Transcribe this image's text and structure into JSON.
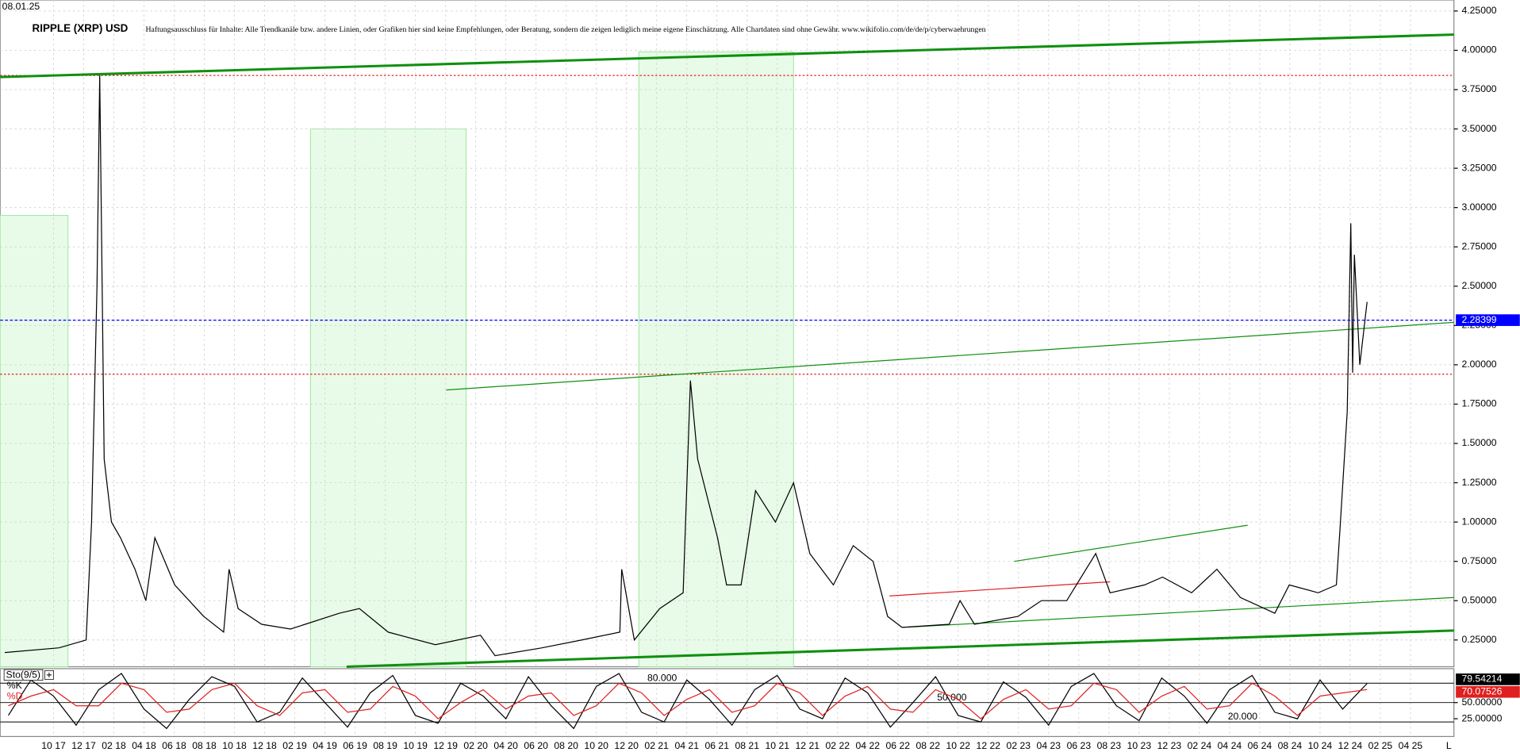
{
  "date": "08.01.25",
  "title": "RIPPLE (XRP) USD",
  "disclaimer": "Haftungsausschluss für Inhalte: Alle Trendkanäle bzw. andere Linien, oder Grafiken hier sind keine Empfehlungen, oder Beratung, sondern die zeigen lediglich meine eigene Einschätzung. Alle Chartdaten sind ohne Gewähr. www.wikifolio.com/de/de/p/cyberwaehrungen",
  "corner_label": "L",
  "chart_data": [
    {
      "type": "line",
      "xlim": [
        2017.455,
        2025.49
      ],
      "ylim": [
        0.08,
        4.32
      ],
      "grid": true,
      "xticks": [
        {
          "value": 2017.75,
          "label": "10 17"
        },
        {
          "value": 2017.9167,
          "label": "12 17"
        },
        {
          "value": 2018.0833,
          "label": "02 18"
        },
        {
          "value": 2018.25,
          "label": "04 18"
        },
        {
          "value": 2018.4167,
          "label": "06 18"
        },
        {
          "value": 2018.5833,
          "label": "08 18"
        },
        {
          "value": 2018.75,
          "label": "10 18"
        },
        {
          "value": 2018.9167,
          "label": "12 18"
        },
        {
          "value": 2019.0833,
          "label": "02 19"
        },
        {
          "value": 2019.25,
          "label": "04 19"
        },
        {
          "value": 2019.4167,
          "label": "06 19"
        },
        {
          "value": 2019.5833,
          "label": "08 19"
        },
        {
          "value": 2019.75,
          "label": "10 19"
        },
        {
          "value": 2019.9167,
          "label": "12 19"
        },
        {
          "value": 2020.0833,
          "label": "02 20"
        },
        {
          "value": 2020.25,
          "label": "04 20"
        },
        {
          "value": 2020.4167,
          "label": "06 20"
        },
        {
          "value": 2020.5833,
          "label": "08 20"
        },
        {
          "value": 2020.75,
          "label": "10 20"
        },
        {
          "value": 2020.9167,
          "label": "12 20"
        },
        {
          "value": 2021.0833,
          "label": "02 21"
        },
        {
          "value": 2021.25,
          "label": "04 21"
        },
        {
          "value": 2021.4167,
          "label": "06 21"
        },
        {
          "value": 2021.5833,
          "label": "08 21"
        },
        {
          "value": 2021.75,
          "label": "10 21"
        },
        {
          "value": 2021.9167,
          "label": "12 21"
        },
        {
          "value": 2022.0833,
          "label": "02 22"
        },
        {
          "value": 2022.25,
          "label": "04 22"
        },
        {
          "value": 2022.4167,
          "label": "06 22"
        },
        {
          "value": 2022.5833,
          "label": "08 22"
        },
        {
          "value": 2022.75,
          "label": "10 22"
        },
        {
          "value": 2022.9167,
          "label": "12 22"
        },
        {
          "value": 2023.0833,
          "label": "02 23"
        },
        {
          "value": 2023.25,
          "label": "04 23"
        },
        {
          "value": 2023.4167,
          "label": "06 23"
        },
        {
          "value": 2023.5833,
          "label": "08 23"
        },
        {
          "value": 2023.75,
          "label": "10 23"
        },
        {
          "value": 2023.9167,
          "label": "12 23"
        },
        {
          "value": 2024.0833,
          "label": "02 24"
        },
        {
          "value": 2024.25,
          "label": "04 24"
        },
        {
          "value": 2024.4167,
          "label": "06 24"
        },
        {
          "value": 2024.5833,
          "label": "08 24"
        },
        {
          "value": 2024.75,
          "label": "10 24"
        },
        {
          "value": 2024.9167,
          "label": "12 24"
        },
        {
          "value": 2025.0833,
          "label": "02 25"
        },
        {
          "value": 2025.25,
          "label": "04 25"
        }
      ],
      "yticks": [
        {
          "value": 0.25,
          "label": "0.25000"
        },
        {
          "value": 0.5,
          "label": "0.50000"
        },
        {
          "value": 0.75,
          "label": "0.75000"
        },
        {
          "value": 1,
          "label": "1.00000"
        },
        {
          "value": 1.25,
          "label": "1.25000"
        },
        {
          "value": 1.5,
          "label": "1.50000"
        },
        {
          "value": 1.75,
          "label": "1.75000"
        },
        {
          "value": 2,
          "label": "2.00000"
        },
        {
          "value": 2.25,
          "label": "2.25000"
        },
        {
          "value": 2.5,
          "label": "2.50000"
        },
        {
          "value": 2.75,
          "label": "2.75000"
        },
        {
          "value": 3,
          "label": "3.00000"
        },
        {
          "value": 3.25,
          "label": "3.25000"
        },
        {
          "value": 3.5,
          "label": "3.50000"
        },
        {
          "value": 3.75,
          "label": "3.75000"
        },
        {
          "value": 4,
          "label": "4.00000"
        },
        {
          "value": 4.25,
          "label": "4.25000"
        }
      ],
      "series": [
        {
          "color": "#000000",
          "x": [
            2017.48,
            2017.78,
            2017.93,
            2017.96,
            2017.99,
            2018.005,
            2018.03,
            2018.07,
            2018.12,
            2018.2,
            2018.26,
            2018.31,
            2018.42,
            2018.58,
            2018.69,
            2018.72,
            2018.77,
            2018.9,
            2019.06,
            2019.33,
            2019.44,
            2019.6,
            2019.86,
            2020.11,
            2020.19,
            2020.45,
            2020.67,
            2020.88,
            2020.89,
            2020.96,
            2021.1,
            2021.23,
            2021.27,
            2021.31,
            2021.42,
            2021.47,
            2021.55,
            2021.63,
            2021.74,
            2021.84,
            2021.93,
            2022.06,
            2022.17,
            2022.28,
            2022.36,
            2022.44,
            2022.7,
            2022.76,
            2022.84,
            2023.08,
            2023.21,
            2023.35,
            2023.51,
            2023.59,
            2023.78,
            2023.88,
            2024.04,
            2024.18,
            2024.31,
            2024.5,
            2024.58,
            2024.74,
            2024.84,
            2024.86,
            2024.9,
            2024.92,
            2024.93,
            2024.94,
            2024.97,
            2025.01
          ],
          "values": [
            0.17,
            0.2,
            0.25,
            1.0,
            2.5,
            3.84,
            1.4,
            1.0,
            0.9,
            0.7,
            0.5,
            0.9,
            0.6,
            0.4,
            0.3,
            0.7,
            0.45,
            0.35,
            0.32,
            0.42,
            0.45,
            0.3,
            0.22,
            0.28,
            0.15,
            0.2,
            0.25,
            0.3,
            0.7,
            0.25,
            0.45,
            0.55,
            1.9,
            1.4,
            0.9,
            0.6,
            0.6,
            1.2,
            1.0,
            1.25,
            0.8,
            0.6,
            0.85,
            0.75,
            0.4,
            0.33,
            0.35,
            0.5,
            0.35,
            0.4,
            0.5,
            0.5,
            0.8,
            0.55,
            0.6,
            0.65,
            0.55,
            0.7,
            0.52,
            0.42,
            0.6,
            0.55,
            0.6,
            0.95,
            1.7,
            2.9,
            1.95,
            2.7,
            2.0,
            2.4
          ]
        }
      ],
      "hlines": [
        {
          "value": 3.84,
          "color": "#e02020"
        },
        {
          "value": 1.94,
          "color": "#e02020"
        }
      ],
      "current": {
        "value": 2.28399,
        "color": "#0000ff"
      },
      "zones": [
        {
          "x": [
            2017.455,
            2017.83
          ],
          "top": 2.95
        },
        {
          "x": [
            2019.17,
            2020.03
          ],
          "top": 3.5
        },
        {
          "x": [
            2020.985,
            2021.84
          ],
          "top": 3.99
        }
      ],
      "trendlines": [
        {
          "x": [
            2017.455,
            2025.49
          ],
          "y": [
            3.83,
            4.1
          ],
          "color": "#109010",
          "width": 2.5
        },
        {
          "x": [
            2019.92,
            2025.49
          ],
          "y": [
            1.84,
            2.27
          ],
          "color": "#109010",
          "width": 1
        },
        {
          "x": [
            2019.37,
            2025.49
          ],
          "y": [
            0.08,
            0.31
          ],
          "color": "#109010",
          "width": 2.5
        },
        {
          "x": [
            2022.44,
            2025.49
          ],
          "y": [
            0.33,
            0.52
          ],
          "color": "#109010",
          "width": 1
        },
        {
          "x": [
            2023.06,
            2024.35
          ],
          "y": [
            0.75,
            0.98
          ],
          "color": "#109010",
          "width": 1
        },
        {
          "x": [
            2022.37,
            2023.59
          ],
          "y": [
            0.53,
            0.62
          ],
          "color": "#e02020",
          "width": 1
        }
      ]
    },
    {
      "type": "line",
      "title": "Sto(9/5)",
      "xlim": [
        2017.455,
        2025.49
      ],
      "ylim": [
        -2.5,
        102.5
      ],
      "inner_ticks": [
        {
          "value": 80,
          "label": "80.000"
        },
        {
          "value": 50,
          "label": "50.000"
        },
        {
          "value": 20,
          "label": "20.000"
        }
      ],
      "yticks": [
        {
          "value": 50,
          "label": "50.00000"
        },
        {
          "value": 25,
          "label": "25.00000"
        }
      ],
      "x": [
        2017.5,
        2017.625,
        2017.75,
        2017.875,
        2018.0,
        2018.125,
        2018.25,
        2018.375,
        2018.5,
        2018.625,
        2018.75,
        2018.875,
        2019.0,
        2019.125,
        2019.25,
        2019.375,
        2019.5,
        2019.625,
        2019.75,
        2019.875,
        2020.0,
        2020.125,
        2020.25,
        2020.375,
        2020.5,
        2020.625,
        2020.75,
        2020.875,
        2021.0,
        2021.125,
        2021.25,
        2021.375,
        2021.5,
        2021.625,
        2021.75,
        2021.875,
        2022.0,
        2022.125,
        2022.25,
        2022.375,
        2022.5,
        2022.625,
        2022.75,
        2022.875,
        2023.0,
        2023.125,
        2023.25,
        2023.375,
        2023.5,
        2023.625,
        2023.75,
        2023.875,
        2024.0,
        2024.125,
        2024.25,
        2024.375,
        2024.5,
        2024.625,
        2024.75,
        2024.875,
        2025.01
      ],
      "series": [
        {
          "name": "%K",
          "color": "#000000",
          "last_bg": "#000000",
          "values": [
            30,
            85,
            60,
            15,
            70,
            95,
            40,
            10,
            55,
            90,
            75,
            20,
            35,
            88,
            50,
            12,
            65,
            92,
            30,
            18,
            80,
            60,
            25,
            90,
            45,
            10,
            75,
            95,
            35,
            20,
            85,
            55,
            15,
            70,
            92,
            40,
            25,
            88,
            65,
            12,
            50,
            90,
            30,
            20,
            82,
            58,
            15,
            75,
            95,
            45,
            22,
            88,
            60,
            18,
            70,
            92,
            35,
            25,
            85,
            40,
            79.54214
          ]
        },
        {
          "name": "%D",
          "color": "#e02020",
          "last_bg": "#e02020",
          "values": [
            45,
            60,
            70,
            45,
            45,
            80,
            70,
            35,
            40,
            70,
            80,
            45,
            30,
            65,
            70,
            35,
            40,
            75,
            60,
            25,
            50,
            70,
            40,
            60,
            65,
            30,
            45,
            80,
            65,
            30,
            55,
            70,
            35,
            45,
            80,
            65,
            30,
            60,
            75,
            40,
            35,
            70,
            55,
            25,
            55,
            70,
            40,
            45,
            80,
            70,
            35,
            60,
            75,
            40,
            45,
            80,
            60,
            30,
            60,
            65,
            70.07526
          ]
        }
      ]
    }
  ]
}
